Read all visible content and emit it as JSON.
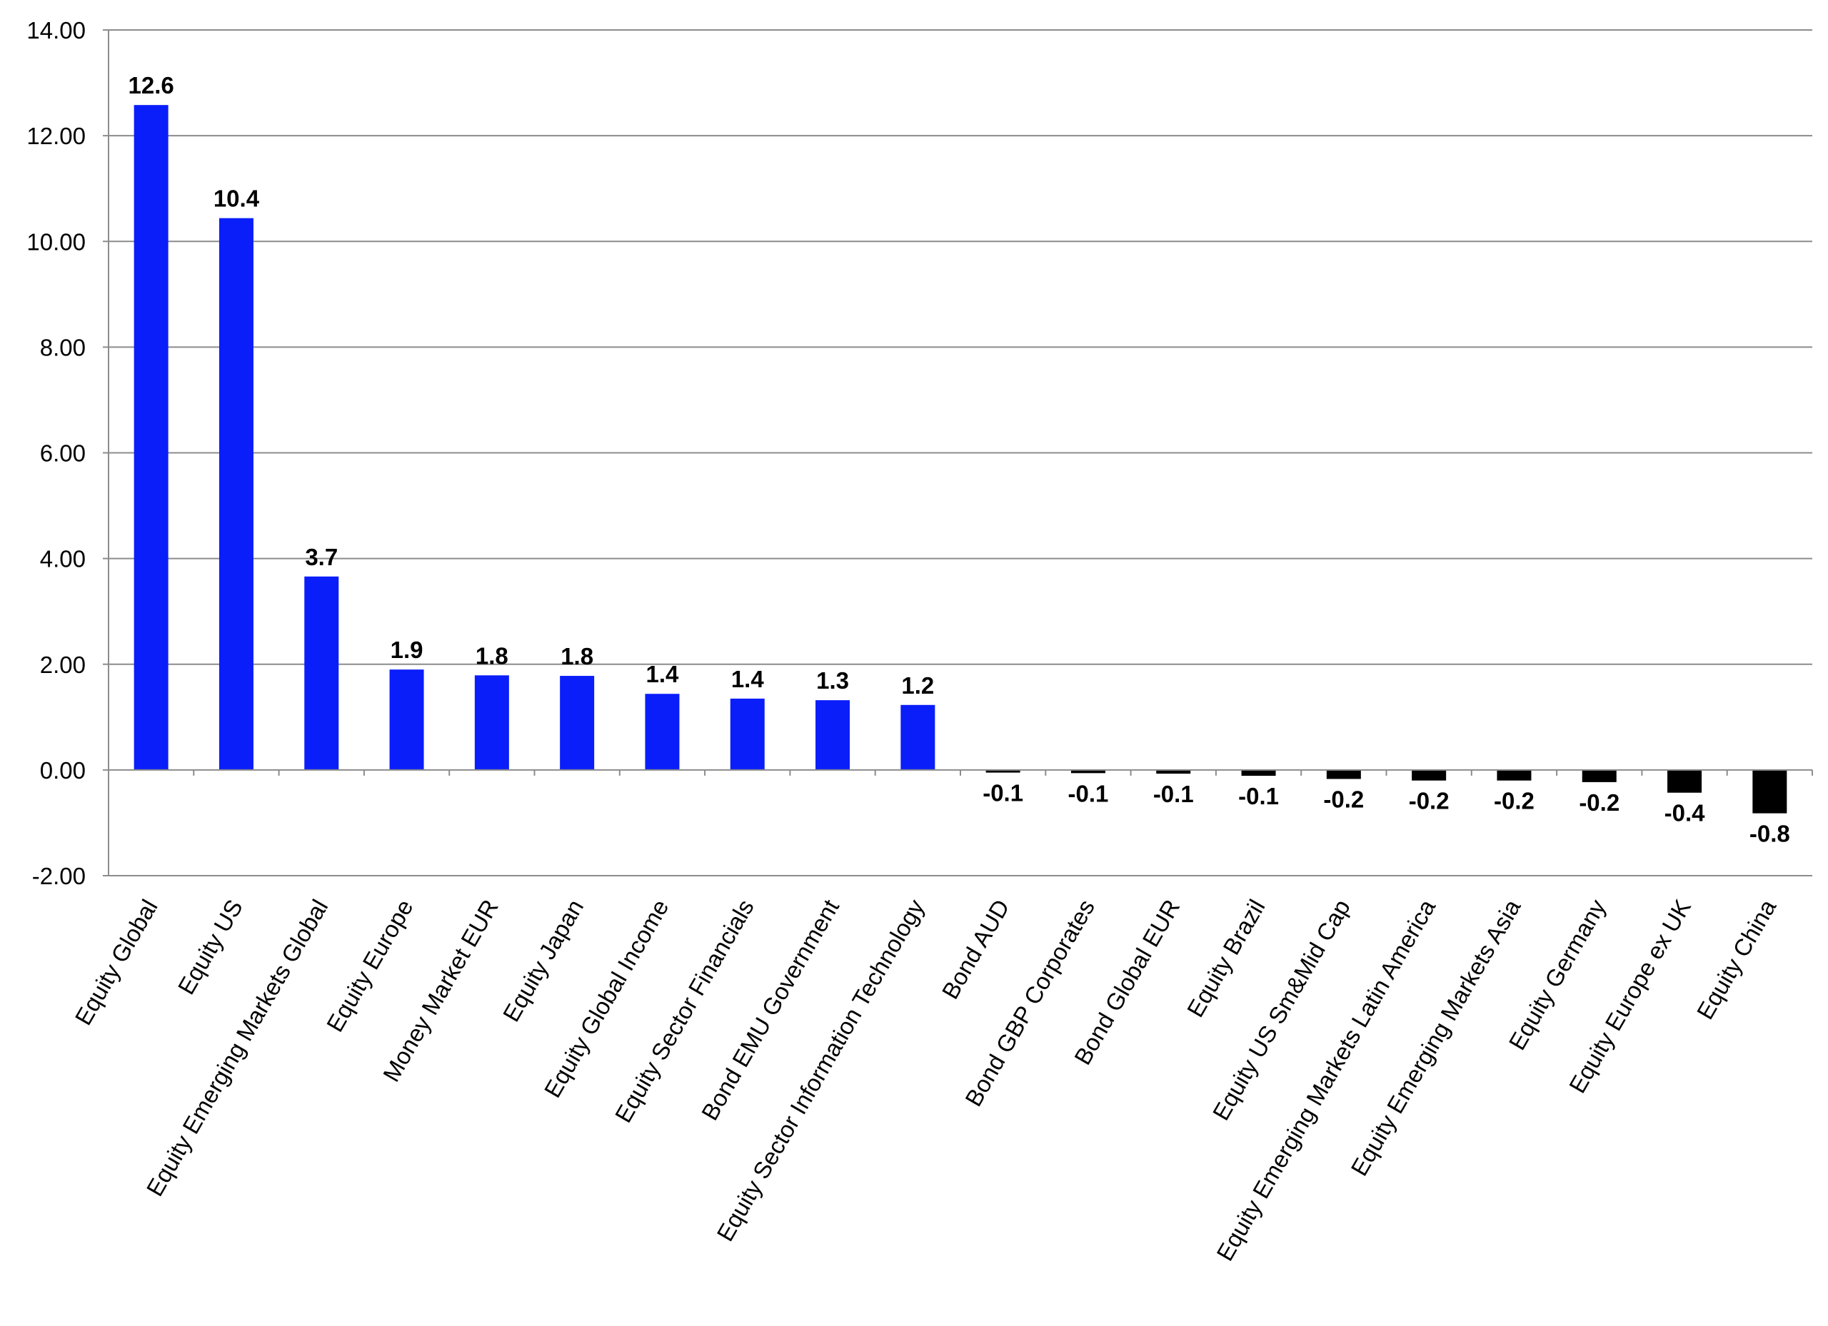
{
  "chart_data": {
    "type": "bar",
    "title": "",
    "xlabel": "",
    "ylabel": "",
    "categories": [
      "Equity Global",
      "Equity US",
      "Equity Emerging Markets Global",
      "Equity Europe",
      "Money Market EUR",
      "Equity Japan",
      "Equity Global Income",
      "Equity Sector Financials",
      "Bond EMU Government",
      "Equity Sector Information Technology",
      "Bond AUD",
      "Bond GBP Corporates",
      "Bond Global EUR",
      "Equity Brazil",
      "Equity US Sm&Mid Cap",
      "Equity Emerging Markets Latin America",
      "Equity Emerging Markets Asia",
      "Equity Germany",
      "Equity Europe ex UK",
      "Equity China"
    ],
    "values": [
      12.58,
      10.44,
      3.66,
      1.9,
      1.79,
      1.78,
      1.44,
      1.35,
      1.32,
      1.23,
      -0.05,
      -0.06,
      -0.07,
      -0.11,
      -0.17,
      -0.2,
      -0.2,
      -0.23,
      -0.43,
      -0.82
    ],
    "data_labels": [
      "12.6",
      "10.4",
      "3.7",
      "1.9",
      "1.8",
      "1.8",
      "1.4",
      "1.4",
      "1.3",
      "1.2",
      "-0.1",
      "-0.1",
      "-0.1",
      "-0.1",
      "-0.2",
      "-0.2",
      "-0.2",
      "-0.2",
      "-0.4",
      "-0.8"
    ],
    "ylim": [
      -2,
      14
    ],
    "yticks": [
      -2,
      0,
      2,
      4,
      6,
      8,
      10,
      12,
      14
    ],
    "ytick_labels": [
      "-2.00",
      "0.00",
      "2.00",
      "4.00",
      "6.00",
      "8.00",
      "10.00",
      "12.00",
      "14.00"
    ],
    "grid": true,
    "legend": "none",
    "colors": {
      "positive": "#0A1EFA",
      "negative": "#000000",
      "grid": "#8C8C8C",
      "axis": "#8C8C8C"
    }
  }
}
